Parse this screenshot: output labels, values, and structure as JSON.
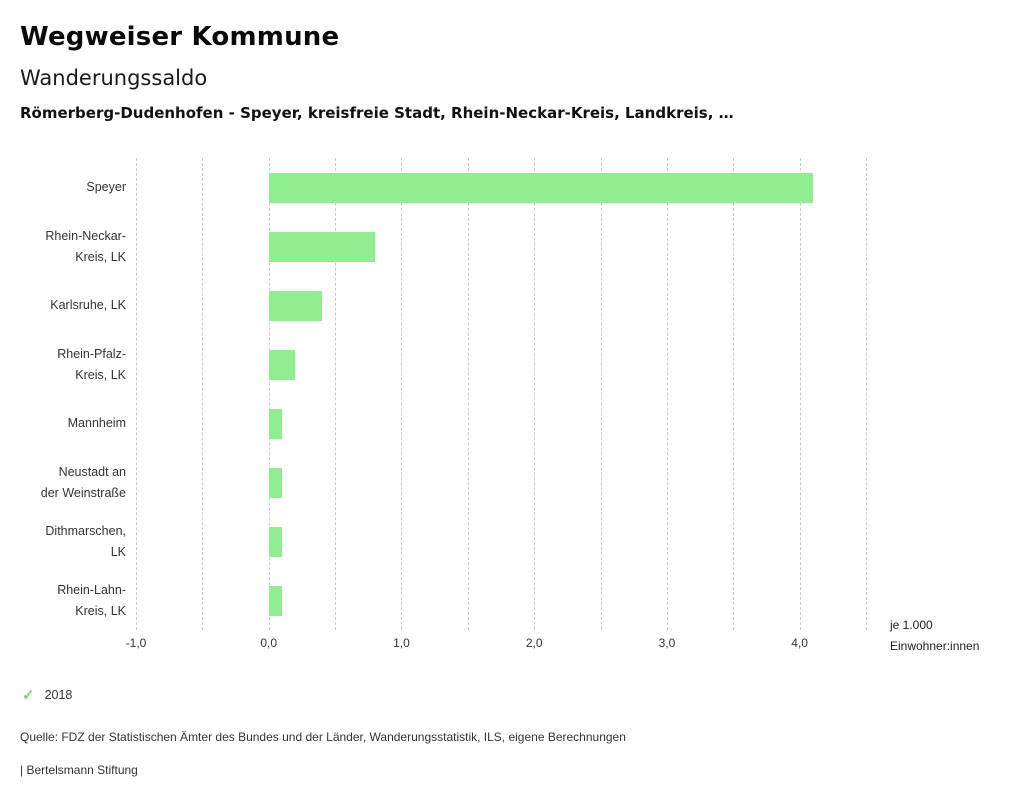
{
  "header": {
    "app_title": "Wegweiser Kommune",
    "chart_title": "Wanderungssaldo",
    "region_line": "Römerberg-Dudenhofen - Speyer, kreisfreie Stadt, Rhein-Neckar-Kreis, Landkreis, …"
  },
  "chart_data": {
    "type": "bar",
    "orientation": "horizontal",
    "title": "Wanderungssaldo",
    "categories": [
      "Speyer",
      "Rhein-Neckar-Kreis, LK",
      "Karlsruhe, LK",
      "Rhein-Pfalz-Kreis, LK",
      "Mannheim",
      "Neustadt an der Weinstraße",
      "Dithmarschen, LK",
      "Rhein-Lahn-Kreis, LK"
    ],
    "category_labels": [
      "Speyer",
      "Rhein-Neckar-\nKreis, LK",
      "Karlsruhe, LK",
      "Rhein-Pfalz-\nKreis, LK",
      "Mannheim",
      "Neustadt an\nder Weinstraße",
      "Dithmarschen,\nLK",
      "Rhein-Lahn-\nKreis, LK"
    ],
    "values": [
      4.1,
      0.8,
      0.4,
      0.2,
      0.1,
      0.1,
      0.1,
      0.1
    ],
    "unit_label": "je 1.000\nEinwohner:innen",
    "xlabel": "",
    "ylabel": "",
    "xlim": [
      -1.0,
      4.5
    ],
    "xticks": [
      -1,
      0,
      1,
      2,
      3,
      4
    ],
    "xtick_labels": [
      "-1,0",
      "0,0",
      "1,0",
      "2,0",
      "3,0",
      "4,0"
    ],
    "gridline_step": 0.5,
    "grid": "vertical-dashed",
    "legend_position": "none",
    "bar_color": "#90ee90"
  },
  "legend": {
    "year": "2018",
    "check_icon": "check-icon"
  },
  "footer": {
    "source": "Quelle: FDZ der Statistischen Ämter des Bundes und der Länder, Wanderungsstatistik, ILS, eigene Berechnungen",
    "branding": "| Bertelsmann Stiftung"
  },
  "colors": {
    "bar": "#90ee90",
    "check": "#7fcb7f",
    "grid": "#c9c9c9",
    "text": "#333333"
  }
}
